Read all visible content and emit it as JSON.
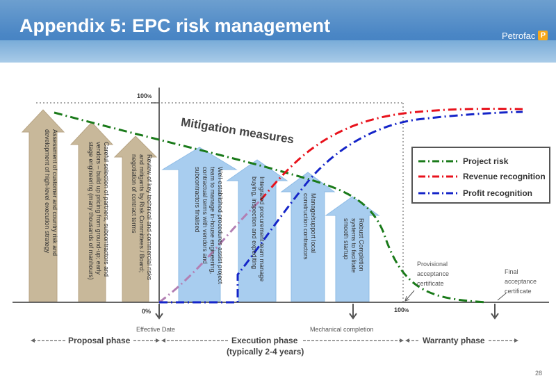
{
  "header": {
    "title": "Appendix 5: EPC risk management",
    "logo_text": "Petrofac",
    "logo_mark": "P",
    "colors": {
      "band": "#4a86c5",
      "logo_mark": "#f7a81b"
    }
  },
  "axes": {
    "top_label": "100",
    "top_unit": "%",
    "zero_label": "0%",
    "mid_label": "100",
    "mid_unit": "%"
  },
  "heading": "Mitigation measures",
  "tan_arrows": [
    {
      "lines": [
        "Assessment of customer and country risk and",
        "development of high-level execution strategy"
      ]
    },
    {
      "lines": [
        "Careful selection of partners, subcontractors and",
        "vendors – build up pricing from ground-up; early",
        "stage engineering (many thousands of manhours)"
      ]
    },
    {
      "lines": [
        "Review of key technical and commercial risks",
        "and mitigants by Risk Committees / Board;",
        "negotiation of contract terms"
      ]
    }
  ],
  "blue_arrows": [
    {
      "lines": [
        "Well-established procedures assist project",
        "team to manage in-house engineering,",
        "contractual terms with vendors and",
        "subcontractors finalised"
      ]
    },
    {
      "lines": [
        "Integrated procurement team manage",
        "buying, inspection and expediting"
      ]
    },
    {
      "lines": [
        "Manage/support local",
        "construction contractors"
      ]
    },
    {
      "lines": [
        "Robust Completion",
        "systems to facilitate",
        "smooth startup"
      ]
    }
  ],
  "legend": {
    "items": [
      {
        "label": "Project risk",
        "color": "#1a7a1a"
      },
      {
        "label": "Revenue recognition",
        "color": "#e8121c"
      },
      {
        "label": "Profit recognition",
        "color": "#1424c8"
      }
    ]
  },
  "curve_colors": {
    "project_risk": "#1a7a1a",
    "revenue": "#e8121c",
    "profit": "#1424c8",
    "pre_revenue": "#b27fb3"
  },
  "milestones": {
    "effective_date": "Effective Date",
    "mechanical_completion": "Mechanical completion",
    "provisional_cert": [
      "Provisional",
      "acceptance",
      "certificate"
    ],
    "final_cert": [
      "Final",
      "acceptance",
      "certificate"
    ]
  },
  "phases": {
    "proposal": "Proposal phase",
    "execution": "Execution phase",
    "execution_sub": "(typically 2-4 years)",
    "warranty": "Warranty phase"
  },
  "page_number": "28"
}
